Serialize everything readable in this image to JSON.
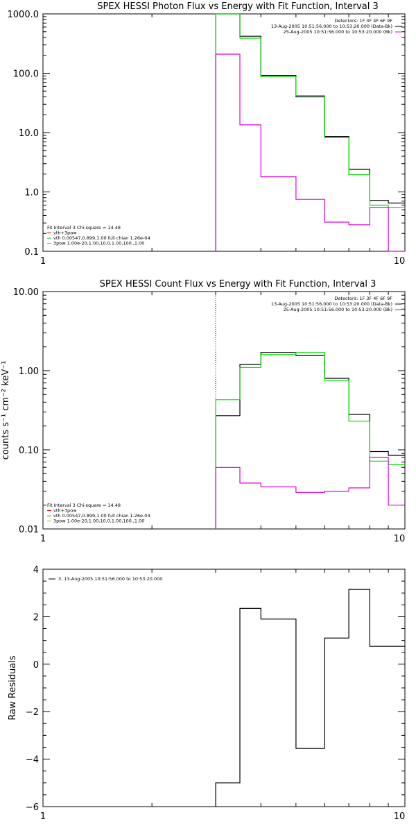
{
  "chart_data": [
    {
      "type": "line",
      "title": "SPEX HESSI Photon Flux vs Energy with Fit Function, Interval 3",
      "xlabel": "",
      "ylabel": "",
      "xscale": "log",
      "yscale": "log",
      "xlim": [
        1,
        10
      ],
      "ylim": [
        0.1,
        1000
      ],
      "x_tick_labels": [
        "1",
        "10"
      ],
      "y_tick_labels": [
        "0.1",
        "1.0",
        "10.0",
        "100.0",
        "1000.0"
      ],
      "vline_x": 3.0,
      "bin_edges": [
        3.0,
        3.5,
        4.0,
        5.0,
        6.0,
        7.0,
        8.0,
        9.0,
        10.0
      ],
      "series": [
        {
          "name": "13-Aug-2005 10:51:56.000 to 10:53:20.000 (Data-Bk)",
          "color": "#000000",
          "values": [
            1000,
            420,
            92,
            40,
            8.6,
            2.4,
            0.72,
            0.65
          ]
        },
        {
          "name": "vth+3pow",
          "color": "#00dd00",
          "values": [
            1000,
            390,
            88,
            42,
            8.2,
            1.95,
            0.6,
            0.55
          ]
        },
        {
          "name": "25-Aug-2005 10:51:56.000 to 10:53:20.000 (Bk)",
          "color": "#dd00dd",
          "values": [
            210,
            13.5,
            1.8,
            0.75,
            0.31,
            0.28,
            0.55,
            0.1
          ]
        }
      ],
      "legend_top": [
        "Detectors: 1F 3F 4F 6F 9F",
        "13-Aug-2005 10:51:56.000 to 10:53:20.000 (Data-Bk)",
        "25-Aug-2005 10:51:56.000 to 10:53:20.000 (Bk)"
      ],
      "legend_bottom": [
        "Fit Interval 3   Chi-square = 14.48",
        "vth+3pow",
        "vth 0.00547,0.899,1.00  full chian 1.26e-04",
        "3pow 1.00e-20,1.00,10.0,1.00,100.,1.00"
      ]
    },
    {
      "type": "line",
      "title": "SPEX HESSI Count Flux vs Energy with Fit Function, Interval 3",
      "xlabel": "",
      "ylabel": "counts s⁻¹ cm⁻² keV⁻¹",
      "xscale": "log",
      "yscale": "log",
      "xlim": [
        1,
        10
      ],
      "ylim": [
        0.01,
        10
      ],
      "x_tick_labels": [
        "1",
        "10"
      ],
      "y_tick_labels": [
        "0.01",
        "0.10",
        "1.00",
        "10.00"
      ],
      "vline_x": 3.0,
      "bin_edges": [
        3.0,
        3.5,
        4.0,
        5.0,
        6.0,
        7.0,
        8.0,
        9.0,
        10.0
      ],
      "series": [
        {
          "name": "13-Aug-2005 10:51:56.000 to 10:53:20.000 (Data-Bk)",
          "color": "#000000",
          "values": [
            0.27,
            1.2,
            1.7,
            1.55,
            0.8,
            0.28,
            0.095,
            0.085
          ]
        },
        {
          "name": "vth+3pow",
          "color": "#00dd00",
          "values": [
            0.43,
            1.1,
            1.6,
            1.7,
            0.75,
            0.23,
            0.072,
            0.065
          ]
        },
        {
          "name": "25-Aug-2005 10:51:56.000 to 10:53:20.000 (Bk)",
          "color": "#dd00dd",
          "values": [
            0.06,
            0.038,
            0.034,
            0.029,
            0.03,
            0.033,
            0.08,
            0.02
          ]
        }
      ],
      "legend_top": [
        "Detectors: 1F 3F 4F 6F 9F",
        "13-Aug-2005 10:51:56.000 to 10:53:20.000 (Data-Bk)",
        "25-Aug-2005 10:51:56.000 to 10:53:20.000 (Bk)"
      ],
      "legend_bottom": [
        "Fit Interval 3   Chi-square = 14.48",
        "vth+3pow",
        "vth 0.00547,0.899,1.00  full chian 1.26e-04",
        "3pow 1.00e-20,1.00,10.0,1.00,100.,1.00"
      ]
    },
    {
      "type": "line",
      "title": "",
      "xlabel": "",
      "ylabel": "Raw Residuals",
      "xscale": "log",
      "yscale": "linear",
      "xlim": [
        1,
        10
      ],
      "ylim": [
        -6,
        4
      ],
      "x_tick_labels": [
        "1",
        "10"
      ],
      "y_tick_labels": [
        "-6",
        "-4",
        "-2",
        "0",
        "2",
        "4"
      ],
      "bin_edges": [
        3.0,
        3.5,
        4.0,
        5.0,
        6.0,
        7.0,
        8.0,
        9.0,
        10.0
      ],
      "series": [
        {
          "name": "3. 13-Aug-2005 10:51:56.000 to 10:53:20.000",
          "color": "#000000",
          "values": [
            -5.0,
            2.35,
            1.9,
            -3.55,
            1.1,
            3.15,
            0.75,
            0.75
          ]
        }
      ]
    }
  ]
}
